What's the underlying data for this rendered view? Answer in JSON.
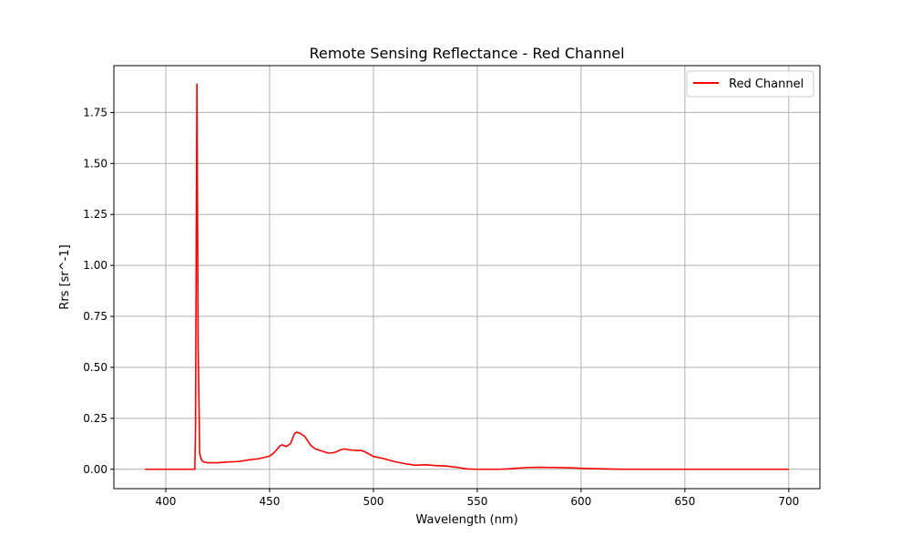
{
  "chart_data": {
    "type": "line",
    "title": "Remote Sensing Reflectance - Red Channel",
    "xlabel": "Wavelength (nm)",
    "ylabel": "Rrs [sr^-1]",
    "xlim": [
      375,
      715
    ],
    "ylim": [
      -0.095,
      1.98
    ],
    "xticks": [
      400,
      450,
      500,
      550,
      600,
      650,
      700
    ],
    "xtick_labels": [
      "400",
      "450",
      "500",
      "550",
      "600",
      "650",
      "700"
    ],
    "yticks": [
      0.0,
      0.25,
      0.5,
      0.75,
      1.0,
      1.25,
      1.5,
      1.75
    ],
    "ytick_labels": [
      "0.00",
      "0.25",
      "0.50",
      "0.75",
      "1.00",
      "1.25",
      "1.50",
      "1.75"
    ],
    "grid": true,
    "legend_position": "upper right",
    "series": [
      {
        "name": "Red Channel",
        "color": "#ff0000",
        "x": [
          390,
          414,
          414.3,
          415,
          415.6,
          416.3,
          417,
          418,
          420,
          425,
          430,
          435,
          440,
          445,
          450,
          452,
          455,
          456,
          458,
          460,
          461,
          462,
          463,
          465,
          467,
          470,
          472,
          475,
          478,
          480,
          482,
          484,
          486,
          488,
          490,
          492,
          494,
          496,
          500,
          505,
          510,
          515,
          520,
          525,
          530,
          535,
          540,
          545,
          550,
          555,
          560,
          565,
          570,
          575,
          580,
          585,
          590,
          595,
          600,
          610,
          620,
          630,
          640,
          650,
          660,
          670,
          680,
          690,
          700
        ],
        "y": [
          0.0,
          0.0,
          0.2,
          1.89,
          0.6,
          0.08,
          0.05,
          0.037,
          0.032,
          0.032,
          0.036,
          0.038,
          0.046,
          0.052,
          0.065,
          0.08,
          0.115,
          0.12,
          0.112,
          0.125,
          0.15,
          0.175,
          0.182,
          0.175,
          0.16,
          0.115,
          0.1,
          0.09,
          0.08,
          0.08,
          0.085,
          0.095,
          0.1,
          0.096,
          0.094,
          0.092,
          0.093,
          0.085,
          0.063,
          0.052,
          0.038,
          0.028,
          0.02,
          0.022,
          0.018,
          0.016,
          0.01,
          0.002,
          0.0,
          0.0,
          0.0,
          0.002,
          0.006,
          0.009,
          0.01,
          0.009,
          0.008,
          0.007,
          0.005,
          0.002,
          0.0005,
          0.0,
          0.0,
          0.0,
          0.0,
          0.0,
          0.0,
          0.0,
          0.0
        ]
      }
    ]
  }
}
